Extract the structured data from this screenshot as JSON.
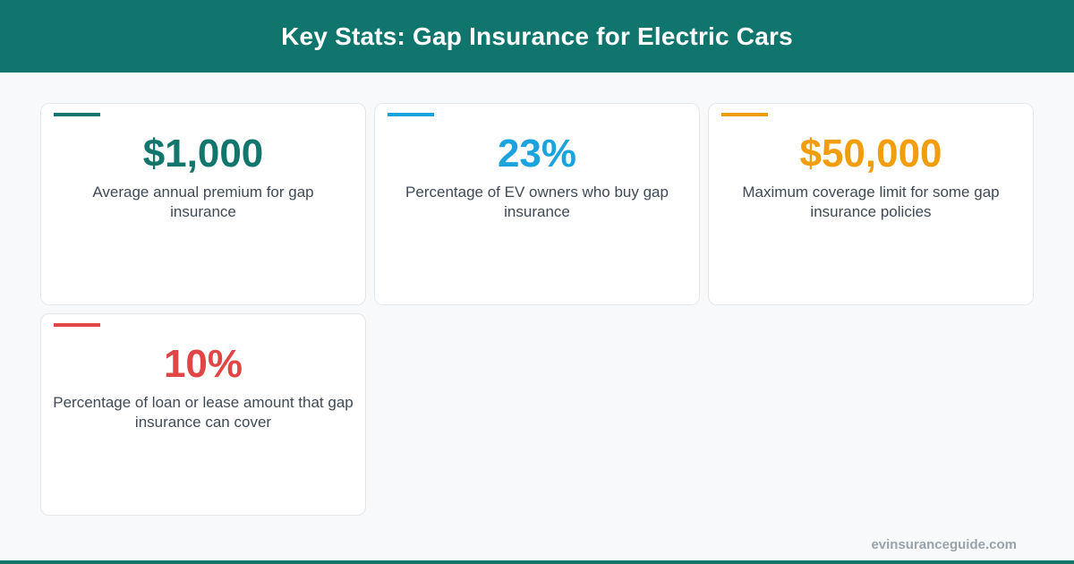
{
  "header": {
    "title": "Key Stats: Gap Insurance for Electric Cars"
  },
  "stats": [
    {
      "value": "$1,000",
      "description": "Average annual premium for gap insurance",
      "color": "#12766d"
    },
    {
      "value": "23%",
      "description": "Percentage of EV owners who buy gap insurance",
      "color": "#1aa3dc"
    },
    {
      "value": "$50,000",
      "description": "Maximum coverage limit for some gap insurance policies",
      "color": "#f29e0c"
    },
    {
      "value": "10%",
      "description": "Percentage of loan or lease amount that gap insurance can cover",
      "color": "#e14545"
    }
  ],
  "footer": {
    "site": "evinsuranceguide.com"
  },
  "colors": {
    "brand": "#10766d",
    "background": "#f7f9fa"
  }
}
